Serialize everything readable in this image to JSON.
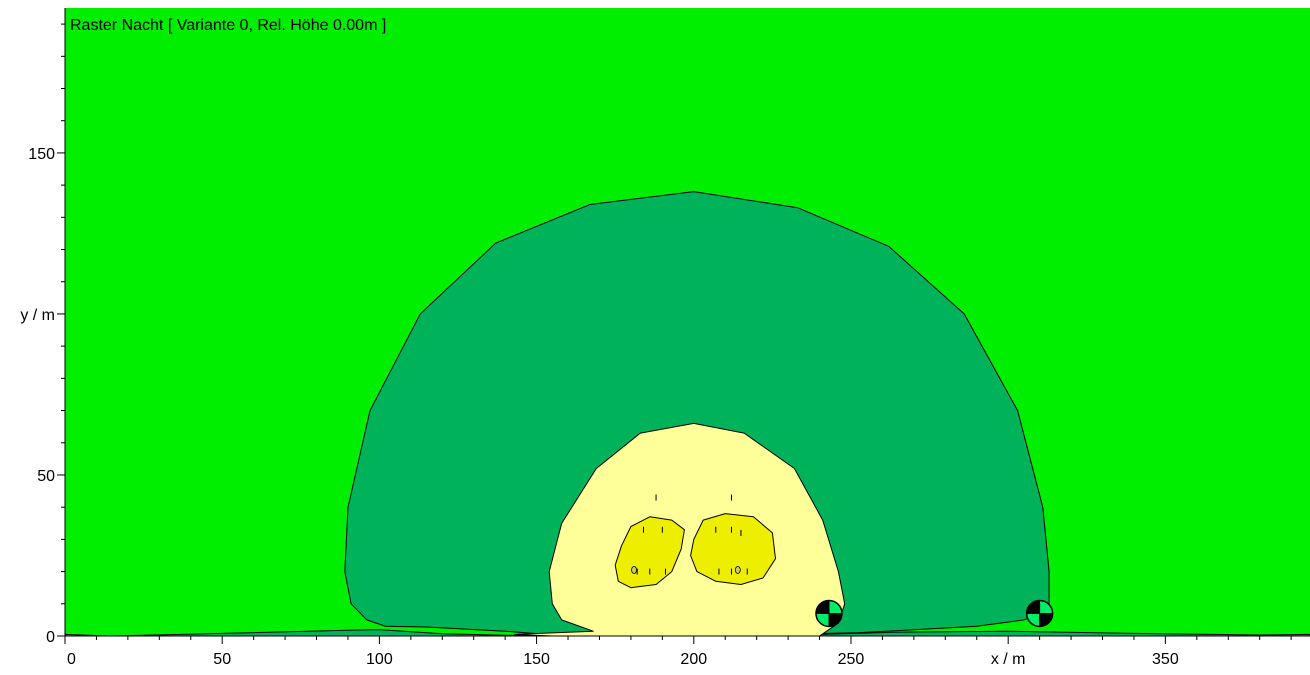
{
  "chart_data": {
    "type": "heatmap",
    "title": "Raster Nacht  [ Variante 0, Rel. Höhe  0.00m ]",
    "xlabel": "x / m",
    "ylabel": "y / m",
    "xlim": [
      0,
      396
    ],
    "ylim": [
      0,
      195
    ],
    "x_ticks": [
      0,
      50,
      100,
      150,
      200,
      250,
      350
    ],
    "x_tick_labels": [
      "0",
      "50",
      "100",
      "150",
      "200",
      "250",
      "350"
    ],
    "y_ticks": [
      0,
      50,
      150
    ],
    "y_tick_labels": [
      "0",
      "50",
      "150"
    ],
    "grid": false,
    "colors": {
      "background": "#00ee00",
      "zone_outer": "#00b35a",
      "zone_inner": "#ffff99",
      "zone_core": "#eeee00",
      "contour_line": "#000000"
    },
    "zones": [
      {
        "name": "zone_outer",
        "color": "#00b35a",
        "outline": [
          [
            0,
            0.5
          ],
          [
            14,
            0
          ],
          [
            32,
            0.4
          ],
          [
            50,
            0.8
          ],
          [
            90,
            1.8
          ],
          [
            100,
            2
          ],
          [
            120,
            0.7
          ],
          [
            150,
            0
          ],
          [
            200,
            0
          ],
          [
            252,
            1
          ],
          [
            290,
            3
          ],
          [
            305,
            5
          ],
          [
            312,
            8
          ],
          [
            313,
            10
          ],
          [
            313,
            20
          ],
          [
            311,
            40
          ],
          [
            303,
            70
          ],
          [
            286,
            100
          ],
          [
            262,
            121
          ],
          [
            233,
            133
          ],
          [
            200,
            138
          ],
          [
            167,
            134
          ],
          [
            137,
            122
          ],
          [
            113,
            100
          ],
          [
            97,
            70
          ],
          [
            90,
            40
          ],
          [
            89,
            20
          ],
          [
            91,
            10
          ],
          [
            96,
            5
          ],
          [
            102,
            3
          ],
          [
            115,
            2.8
          ],
          [
            140,
            1.5
          ],
          [
            160,
            0
          ],
          [
            200,
            0
          ],
          [
            240,
            0.5
          ],
          [
            265,
            1.2
          ],
          [
            300,
            1.5
          ],
          [
            340,
            0.8
          ],
          [
            380,
            0.3
          ],
          [
            396,
            0.5
          ],
          [
            396,
            0
          ],
          [
            0,
            0
          ]
        ]
      },
      {
        "name": "zone_inner",
        "color": "#ffff99",
        "outline": [
          [
            143,
            0.5
          ],
          [
            155,
            0
          ],
          [
            240,
            0
          ],
          [
            246,
            4
          ],
          [
            248,
            10
          ],
          [
            246,
            20
          ],
          [
            241,
            36
          ],
          [
            232,
            52
          ],
          [
            216,
            63
          ],
          [
            200,
            66
          ],
          [
            183,
            63
          ],
          [
            169,
            52
          ],
          [
            158,
            35
          ],
          [
            154,
            20
          ],
          [
            155,
            10
          ],
          [
            158,
            5
          ],
          [
            168,
            1.5
          ]
        ]
      },
      {
        "name": "zone_core_left",
        "color": "#eeee00",
        "outline": [
          [
            176,
            17
          ],
          [
            180,
            15
          ],
          [
            188,
            16
          ],
          [
            193,
            20
          ],
          [
            196,
            27
          ],
          [
            197,
            33
          ],
          [
            193,
            36
          ],
          [
            186,
            37
          ],
          [
            180,
            34
          ],
          [
            177,
            28
          ],
          [
            175,
            22
          ]
        ]
      },
      {
        "name": "zone_core_right",
        "color": "#eeee00",
        "outline": [
          [
            201,
            20
          ],
          [
            207,
            17
          ],
          [
            215,
            16
          ],
          [
            222,
            18
          ],
          [
            226,
            24
          ],
          [
            225,
            32
          ],
          [
            219,
            37
          ],
          [
            210,
            38
          ],
          [
            203,
            36
          ],
          [
            200,
            30
          ],
          [
            199,
            25
          ]
        ]
      }
    ],
    "markers": [
      {
        "name": "immission-point",
        "x": 243,
        "y": 7
      },
      {
        "name": "immission-point",
        "x": 310,
        "y": 7
      }
    ],
    "small_marks": [
      {
        "x": 188,
        "y": 43
      },
      {
        "x": 212,
        "y": 43
      },
      {
        "x": 184,
        "y": 33
      },
      {
        "x": 190,
        "y": 33
      },
      {
        "x": 207,
        "y": 33
      },
      {
        "x": 212,
        "y": 33
      },
      {
        "x": 215,
        "y": 32
      },
      {
        "x": 182,
        "y": 20
      },
      {
        "x": 186,
        "y": 20
      },
      {
        "x": 191,
        "y": 20
      },
      {
        "x": 208,
        "y": 20
      },
      {
        "x": 212,
        "y": 20
      },
      {
        "x": 217,
        "y": 20
      }
    ],
    "small_blobs": [
      {
        "x": 181,
        "y": 20.5
      },
      {
        "x": 214,
        "y": 20.5
      }
    ]
  }
}
